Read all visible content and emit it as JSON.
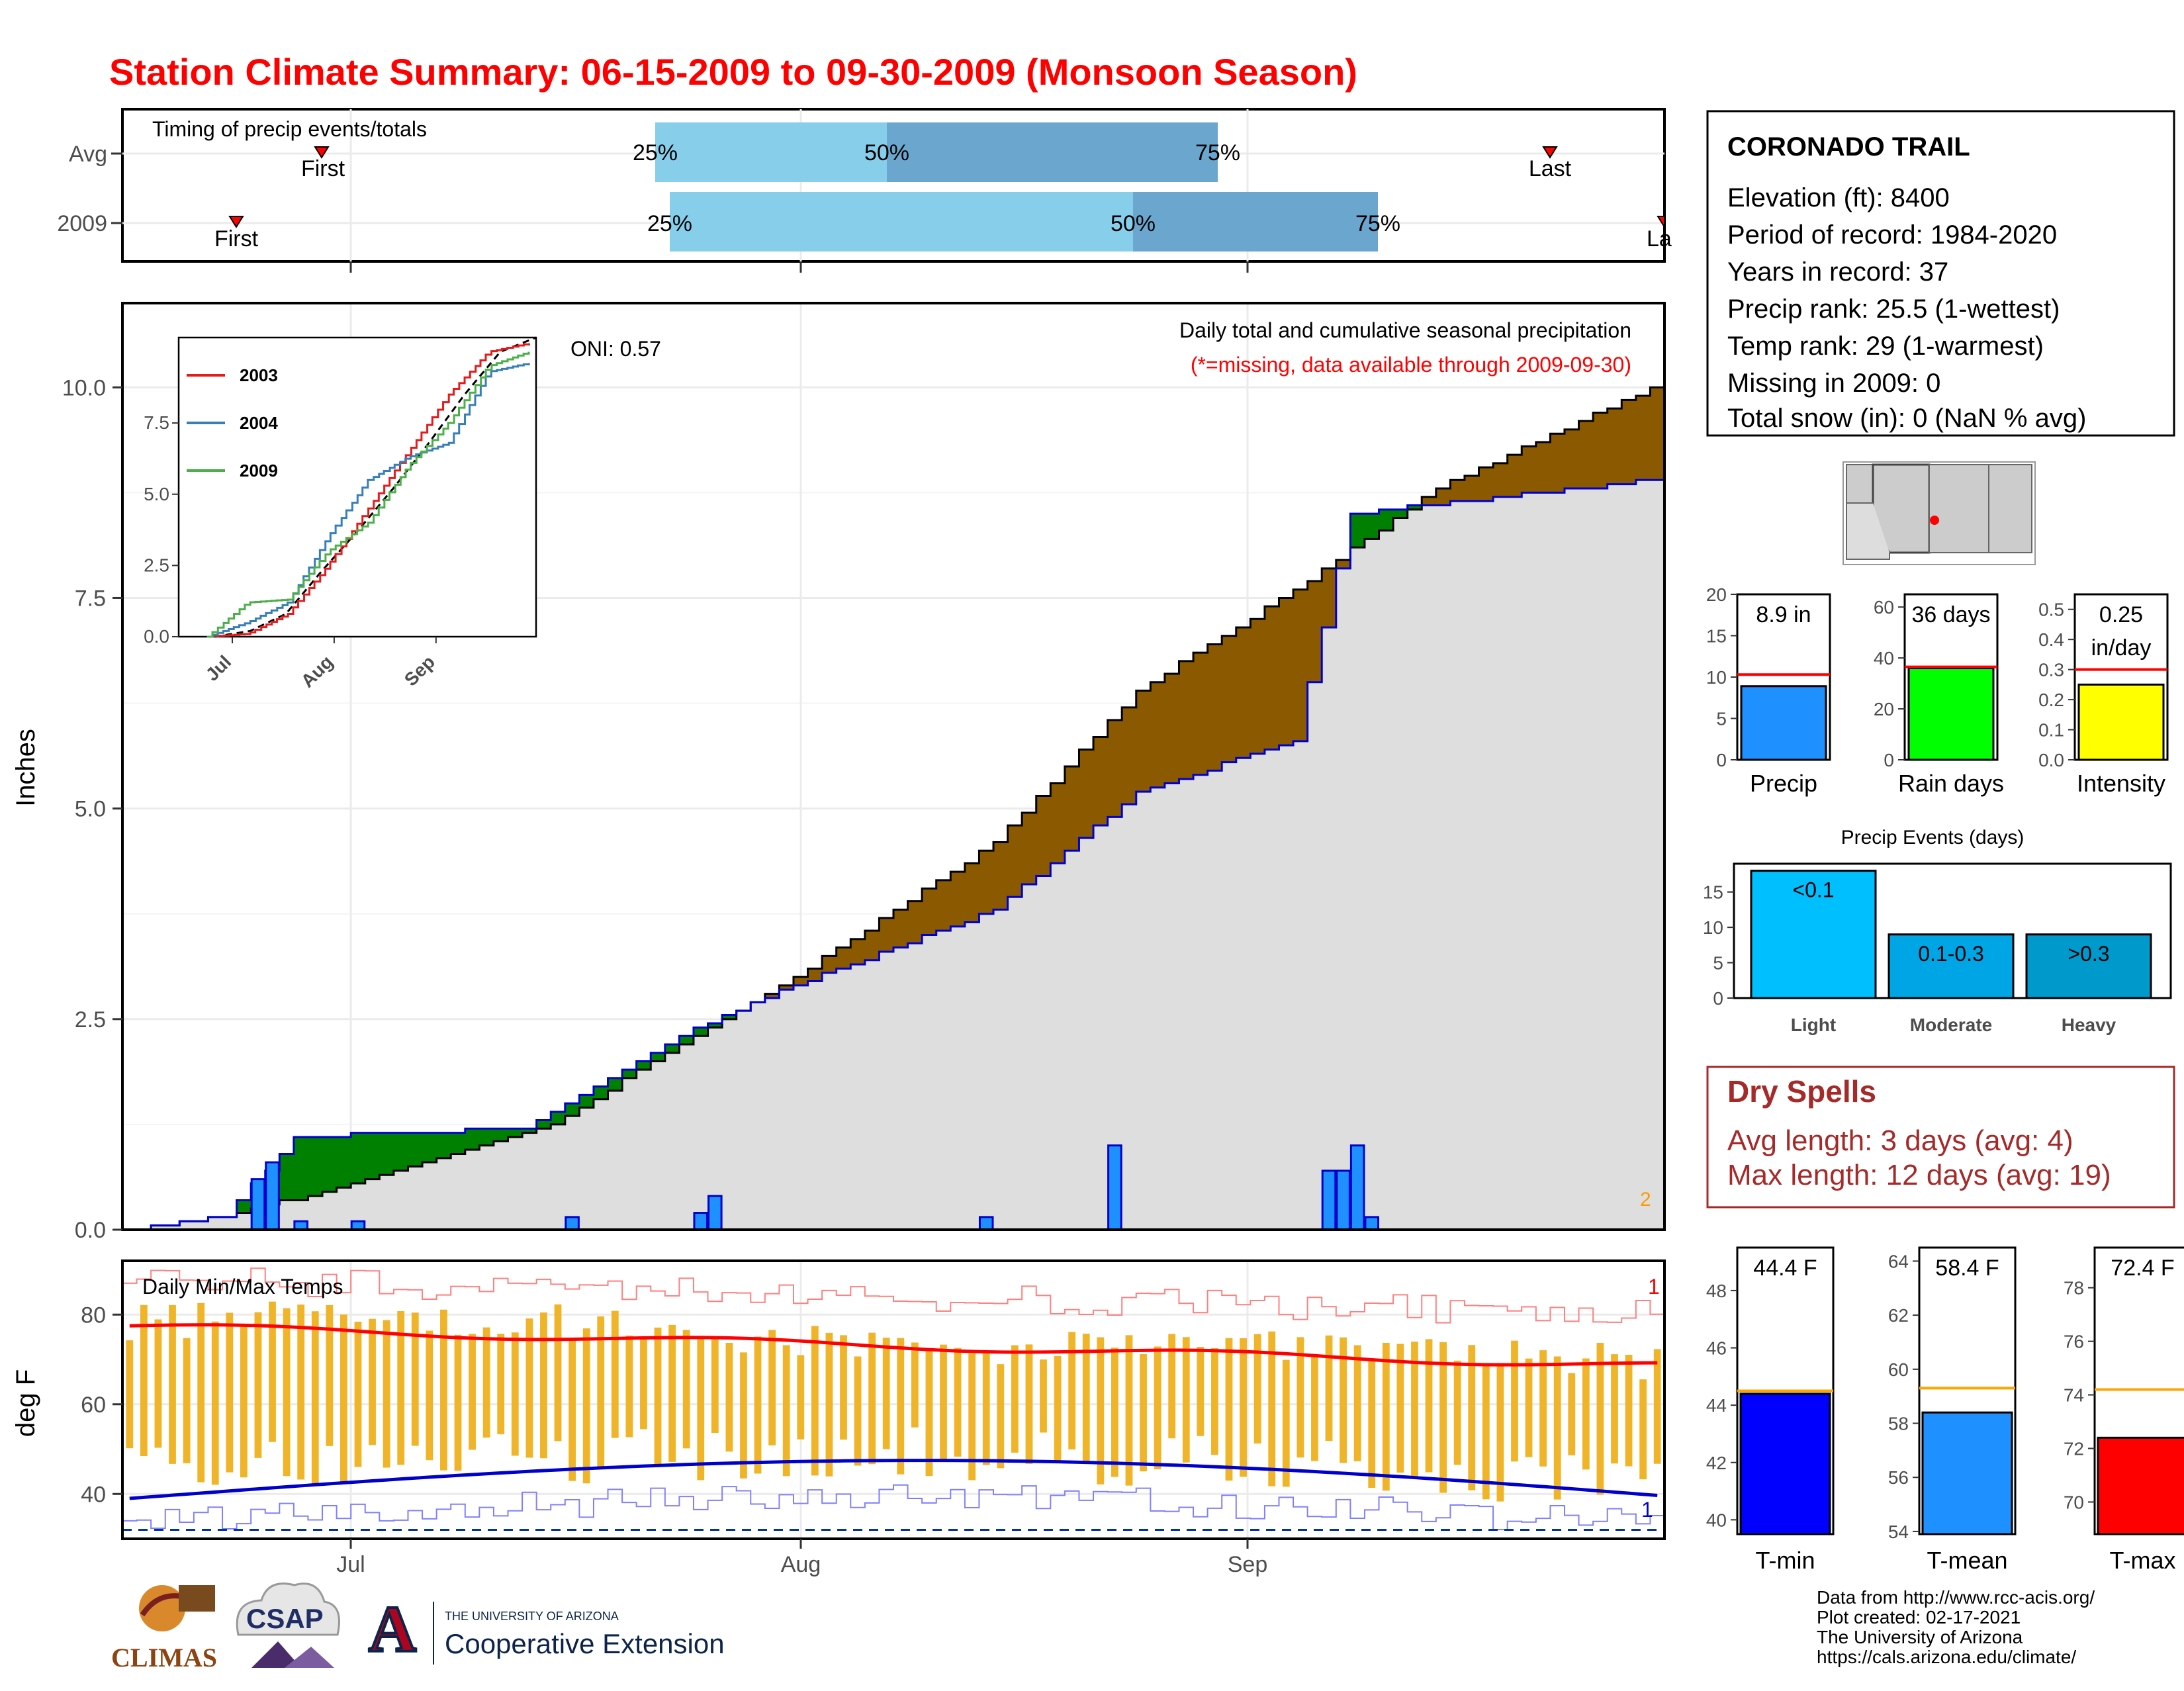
{
  "title": "Station Climate Summary: 06-15-2009 to 09-30-2009 (Monsoon Season)",
  "timing": {
    "label": "Timing of precip events/totals",
    "rows": [
      {
        "name": "Avg",
        "first": "First",
        "last": "Last",
        "q25": "25%",
        "q50": "50%",
        "q75": "75%"
      },
      {
        "name": "2009",
        "first": "First",
        "last": "La",
        "q25": "25%",
        "q50": "50%",
        "q75": "75%"
      }
    ]
  },
  "main": {
    "ylabel": "Inches",
    "oni": "ONI: 0.57",
    "caption1": "Daily total and cumulative seasonal precipitation",
    "caption2": "(*=missing, data available through 2009-09-30)",
    "yticks": [
      "0.0",
      "2.5",
      "5.0",
      "7.5",
      "10.0"
    ],
    "count_label": "2"
  },
  "inset": {
    "yticks": [
      "0.0",
      "2.5",
      "5.0",
      "7.5"
    ],
    "xticks": [
      "Jul",
      "Aug",
      "Sep"
    ],
    "legend": [
      "2003",
      "2004",
      "2009"
    ],
    "colors": [
      "#e41a1c",
      "#377eb8",
      "#4daf4a"
    ]
  },
  "temps": {
    "label": "Daily Min/Max Temps",
    "ylabel": "deg F",
    "yticks": [
      "40",
      "60",
      "80"
    ],
    "top_count": "1",
    "bottom_count": "1"
  },
  "xaxis": {
    "ticks": [
      "Jul",
      "Aug",
      "Sep"
    ]
  },
  "station": {
    "name": "CORONADO TRAIL",
    "lines": [
      "Elevation (ft): 8400",
      "Period of record: 1984-2020",
      "Years in record: 37",
      "Precip rank: 25.5 (1-wettest)",
      "Temp rank: 29 (1-warmest)",
      "Missing in 2009: 0",
      "Total snow (in): 0 (NaN % avg)"
    ]
  },
  "mini_bars": [
    {
      "label": "Precip",
      "value_text": "8.9 in",
      "value": 8.9,
      "avg": 10.3,
      "color": "#1e90ff",
      "yticks": [
        "0",
        "5",
        "10",
        "15",
        "20"
      ],
      "ymax": 20
    },
    {
      "label": "Rain days",
      "value_text": "36 days",
      "value": 36,
      "avg": 36.5,
      "color": "#00ff00",
      "yticks": [
        "0",
        "20",
        "40",
        "60"
      ],
      "ymax": 65
    },
    {
      "label": "Intensity",
      "value_text": "0.25",
      "value_text2": "in/day",
      "value": 0.25,
      "avg": 0.3,
      "color": "#ffff00",
      "yticks": [
        "0.0",
        "0.1",
        "0.2",
        "0.3",
        "0.4",
        "0.5"
      ],
      "ymax": 0.55
    }
  ],
  "events": {
    "title": "Precip Events (days)",
    "yticks": [
      "0",
      "5",
      "10",
      "15"
    ],
    "bars": [
      {
        "label": "Light",
        "text": "<0.1",
        "value": 18,
        "color": "#00bfff"
      },
      {
        "label": "Moderate",
        "text": "0.1-0.3",
        "value": 9,
        "color": "#00a5e6"
      },
      {
        "label": "Heavy",
        "text": ">0.3",
        "value": 9,
        "color": "#0099cc"
      }
    ]
  },
  "dry_spells": {
    "title": "Dry Spells",
    "line1": "Avg length: 3 days (avg: 4)",
    "line2": "Max length: 12 days (avg: 19)"
  },
  "temp_bars": [
    {
      "label": "T-min",
      "value_text": "44.4 F",
      "value": 44.4,
      "avg": 44.5,
      "color": "#0000ff",
      "yticks": [
        "40",
        "42",
        "44",
        "46",
        "48"
      ],
      "ymin": 39.5,
      "ymax": 49.5
    },
    {
      "label": "T-mean",
      "value_text": "58.4 F",
      "value": 58.4,
      "avg": 59.3,
      "color": "#1e90ff",
      "yticks": [
        "54",
        "56",
        "58",
        "60",
        "62",
        "64"
      ],
      "ymin": 53.9,
      "ymax": 64.5
    },
    {
      "label": "T-max",
      "value_text": "72.4 F",
      "value": 72.4,
      "avg": 74.2,
      "color": "#ff0000",
      "yticks": [
        "70",
        "72",
        "74",
        "76",
        "78"
      ],
      "ymin": 68.8,
      "ymax": 79.5
    }
  ],
  "logos": {
    "climas": "CLIMAS",
    "csap": "CSAP",
    "ua_small": "THE UNIVERSITY OF ARIZONA",
    "coop": "Cooperative Extension",
    "ua_mark": "A"
  },
  "footer": [
    "Data from http://www.rcc-acis.org/",
    "Plot created: 02-17-2021",
    "The University of Arizona",
    "https://cals.arizona.edu/climate/"
  ],
  "chart_data": [
    {
      "type": "area",
      "title": "Daily total and cumulative seasonal precipitation",
      "ylabel": "Inches",
      "ylim": [
        0,
        11
      ],
      "xlim": [
        "2009-06-15",
        "2009-09-30"
      ],
      "series": [
        {
          "name": "",
          "x": [
            "2009-06-15",
            "2009-06-22",
            "2009-07-01",
            "2009-07-15",
            "2009-07-25",
            "2009-08-01",
            "2009-08-15",
            "2009-08-25",
            "2009-09-05",
            "2009-09-15",
            "2009-09-30"
          ],
          "values": [
            0,
            0.15,
            0.55,
            1.25,
            2.3,
            3.0,
            4.6,
            6.4,
            7.6,
            8.8,
            10.0
          ]
        },
        {
          "name": "",
          "x": [
            "2009-06-15",
            "2009-06-22",
            "2009-06-27",
            "2009-07-13",
            "2009-07-24",
            "2009-08-01",
            "2009-08-15",
            "2009-08-25",
            "2009-09-05",
            "2009-09-09",
            "2009-09-30"
          ],
          "values": [
            0,
            0.15,
            1.1,
            1.2,
            2.3,
            2.9,
            3.8,
            5.2,
            5.8,
            8.5,
            8.9
          ]
        },
        {
          "name": "",
          "x": [
            "2009-06-24",
            "2009-06-25",
            "2009-06-27",
            "2009-07-01",
            "2009-07-16",
            "2009-07-25",
            "2009-07-26",
            "2009-08-14",
            "2009-08-23",
            "2009-09-07",
            "2009-09-08",
            "2009-09-09",
            "2009-09-10"
          ],
          "values": [
            0.6,
            0.8,
            0.1,
            0.1,
            0.15,
            0.2,
            0.4,
            0.15,
            1.0,
            0.7,
            0.7,
            1.0,
            0.15
          ]
        }
      ]
    },
    {
      "type": "line",
      "ylim": [
        0,
        10.5
      ],
      "series": [
        {
          "name": "2003",
          "values": [
            0,
            0.1,
            0.8,
            2.5,
            4.5,
            6.5,
            8.5,
            10.0,
            10.3
          ]
        },
        {
          "name": "2004",
          "values": [
            0,
            0.5,
            1.2,
            3.5,
            5.5,
            6.3,
            6.8,
            9.3,
            9.6
          ]
        },
        {
          "name": "2009",
          "values": [
            0,
            1.2,
            1.3,
            3.0,
            4.0,
            6.0,
            7.5,
            9.5,
            10.0
          ]
        }
      ]
    },
    {
      "type": "bar",
      "title": "Daily Min/Max Temps",
      "ylabel": "deg F",
      "ylim": [
        30,
        92
      ]
    },
    {
      "type": "bar",
      "categories": [
        "Light",
        "Moderate",
        "Heavy"
      ],
      "values": [
        18,
        9,
        9
      ],
      "title": "Precip Events (days)"
    }
  ]
}
